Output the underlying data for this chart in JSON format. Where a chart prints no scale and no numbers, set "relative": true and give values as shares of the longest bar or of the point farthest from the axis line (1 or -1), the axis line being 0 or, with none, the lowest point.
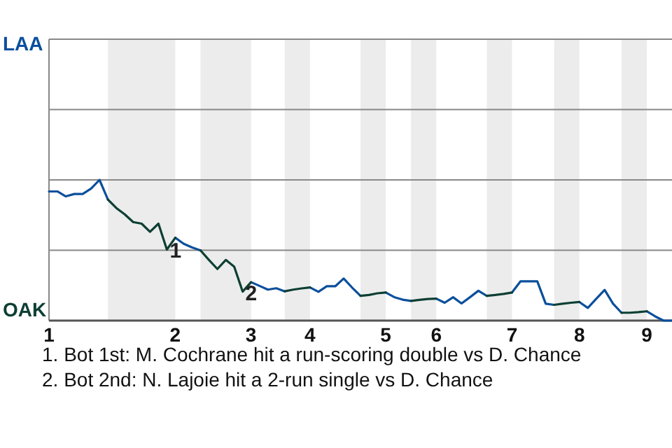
{
  "chart_data": {
    "type": "line",
    "relative": true,
    "categories": [
      "1",
      null,
      null,
      null,
      null,
      null,
      null,
      null,
      null,
      null,
      null,
      null,
      null,
      null,
      null,
      "2",
      null,
      null,
      null,
      null,
      null,
      null,
      null,
      null,
      "3",
      null,
      null,
      null,
      null,
      null,
      null,
      "4",
      null,
      null,
      null,
      null,
      null,
      null,
      null,
      null,
      "5",
      null,
      null,
      null,
      null,
      null,
      "6",
      null,
      null,
      null,
      null,
      null,
      null,
      null,
      null,
      "7",
      null,
      null,
      null,
      null,
      null,
      null,
      null,
      "8",
      null,
      null,
      null,
      null,
      null,
      null,
      null,
      "9",
      null,
      null,
      null
    ],
    "series": [
      {
        "color": "#0b4f9c",
        "values": [
          0.918,
          0.918,
          0.883,
          0.9,
          0.9,
          0.938,
          1,
          0.86,
          null,
          null,
          null,
          null,
          null,
          null,
          null,
          0.589,
          0.546,
          0.52,
          0.499,
          null,
          null,
          null,
          null,
          null,
          0.273,
          0.247,
          0.22,
          0.23,
          0.208,
          null,
          null,
          0.236,
          0.205,
          0.244,
          0.244,
          0.299,
          0.235,
          0.176,
          null,
          null,
          0.2,
          0.167,
          0.149,
          0.14,
          null,
          null,
          0.156,
          0.127,
          0.166,
          0.122,
          0.166,
          0.212,
          0.176,
          null,
          null,
          0.2,
          0.279,
          0.279,
          0.279,
          0.12,
          0.112,
          null,
          null,
          0.132,
          0.09,
          0.155,
          0.218,
          0.12,
          0.056,
          null,
          null,
          0.066,
          0.03,
          0,
          0
        ]
      },
      {
        "color": "#0d3f33",
        "values": [
          null,
          null,
          null,
          null,
          null,
          null,
          null,
          0.86,
          0.8,
          0.755,
          0.7,
          0.689,
          0.631,
          0.689,
          0.505,
          0.589,
          null,
          null,
          0.499,
          0.431,
          0.367,
          0.431,
          0.383,
          0.206,
          0.273,
          null,
          null,
          null,
          0.208,
          0.22,
          0.229,
          0.236,
          null,
          null,
          null,
          null,
          null,
          0.176,
          0.182,
          0.194,
          0.2,
          null,
          null,
          0.14,
          0.147,
          0.154,
          0.156,
          null,
          null,
          null,
          null,
          null,
          0.176,
          0.182,
          0.19,
          0.2,
          null,
          null,
          null,
          null,
          0.112,
          0.12,
          0.127,
          0.132,
          null,
          null,
          null,
          null,
          0.056,
          0.056,
          0.06,
          0.066,
          null,
          null,
          null
        ]
      }
    ],
    "ref_lines": [
      {
        "axis": "y",
        "value": 0.5,
        "color": "#888888"
      },
      {
        "axis": "y",
        "value": 1,
        "color": "#888888"
      },
      {
        "axis": "y",
        "value": 1.5,
        "color": "#888888"
      },
      {
        "axis": "y",
        "value": 2,
        "color": "#888888"
      }
    ],
    "annotations": [
      "LAA",
      "OAK",
      {
        "text": "1",
        "y": 0.505
      },
      {
        "text": "2",
        "y": 0.206
      },
      "1. Bot 1st: M. Cochrane hit a run-scoring double vs D. Chance",
      "2. Bot 2nd: N. Lajoie hit a 2-run single vs D. Chance"
    ]
  }
}
